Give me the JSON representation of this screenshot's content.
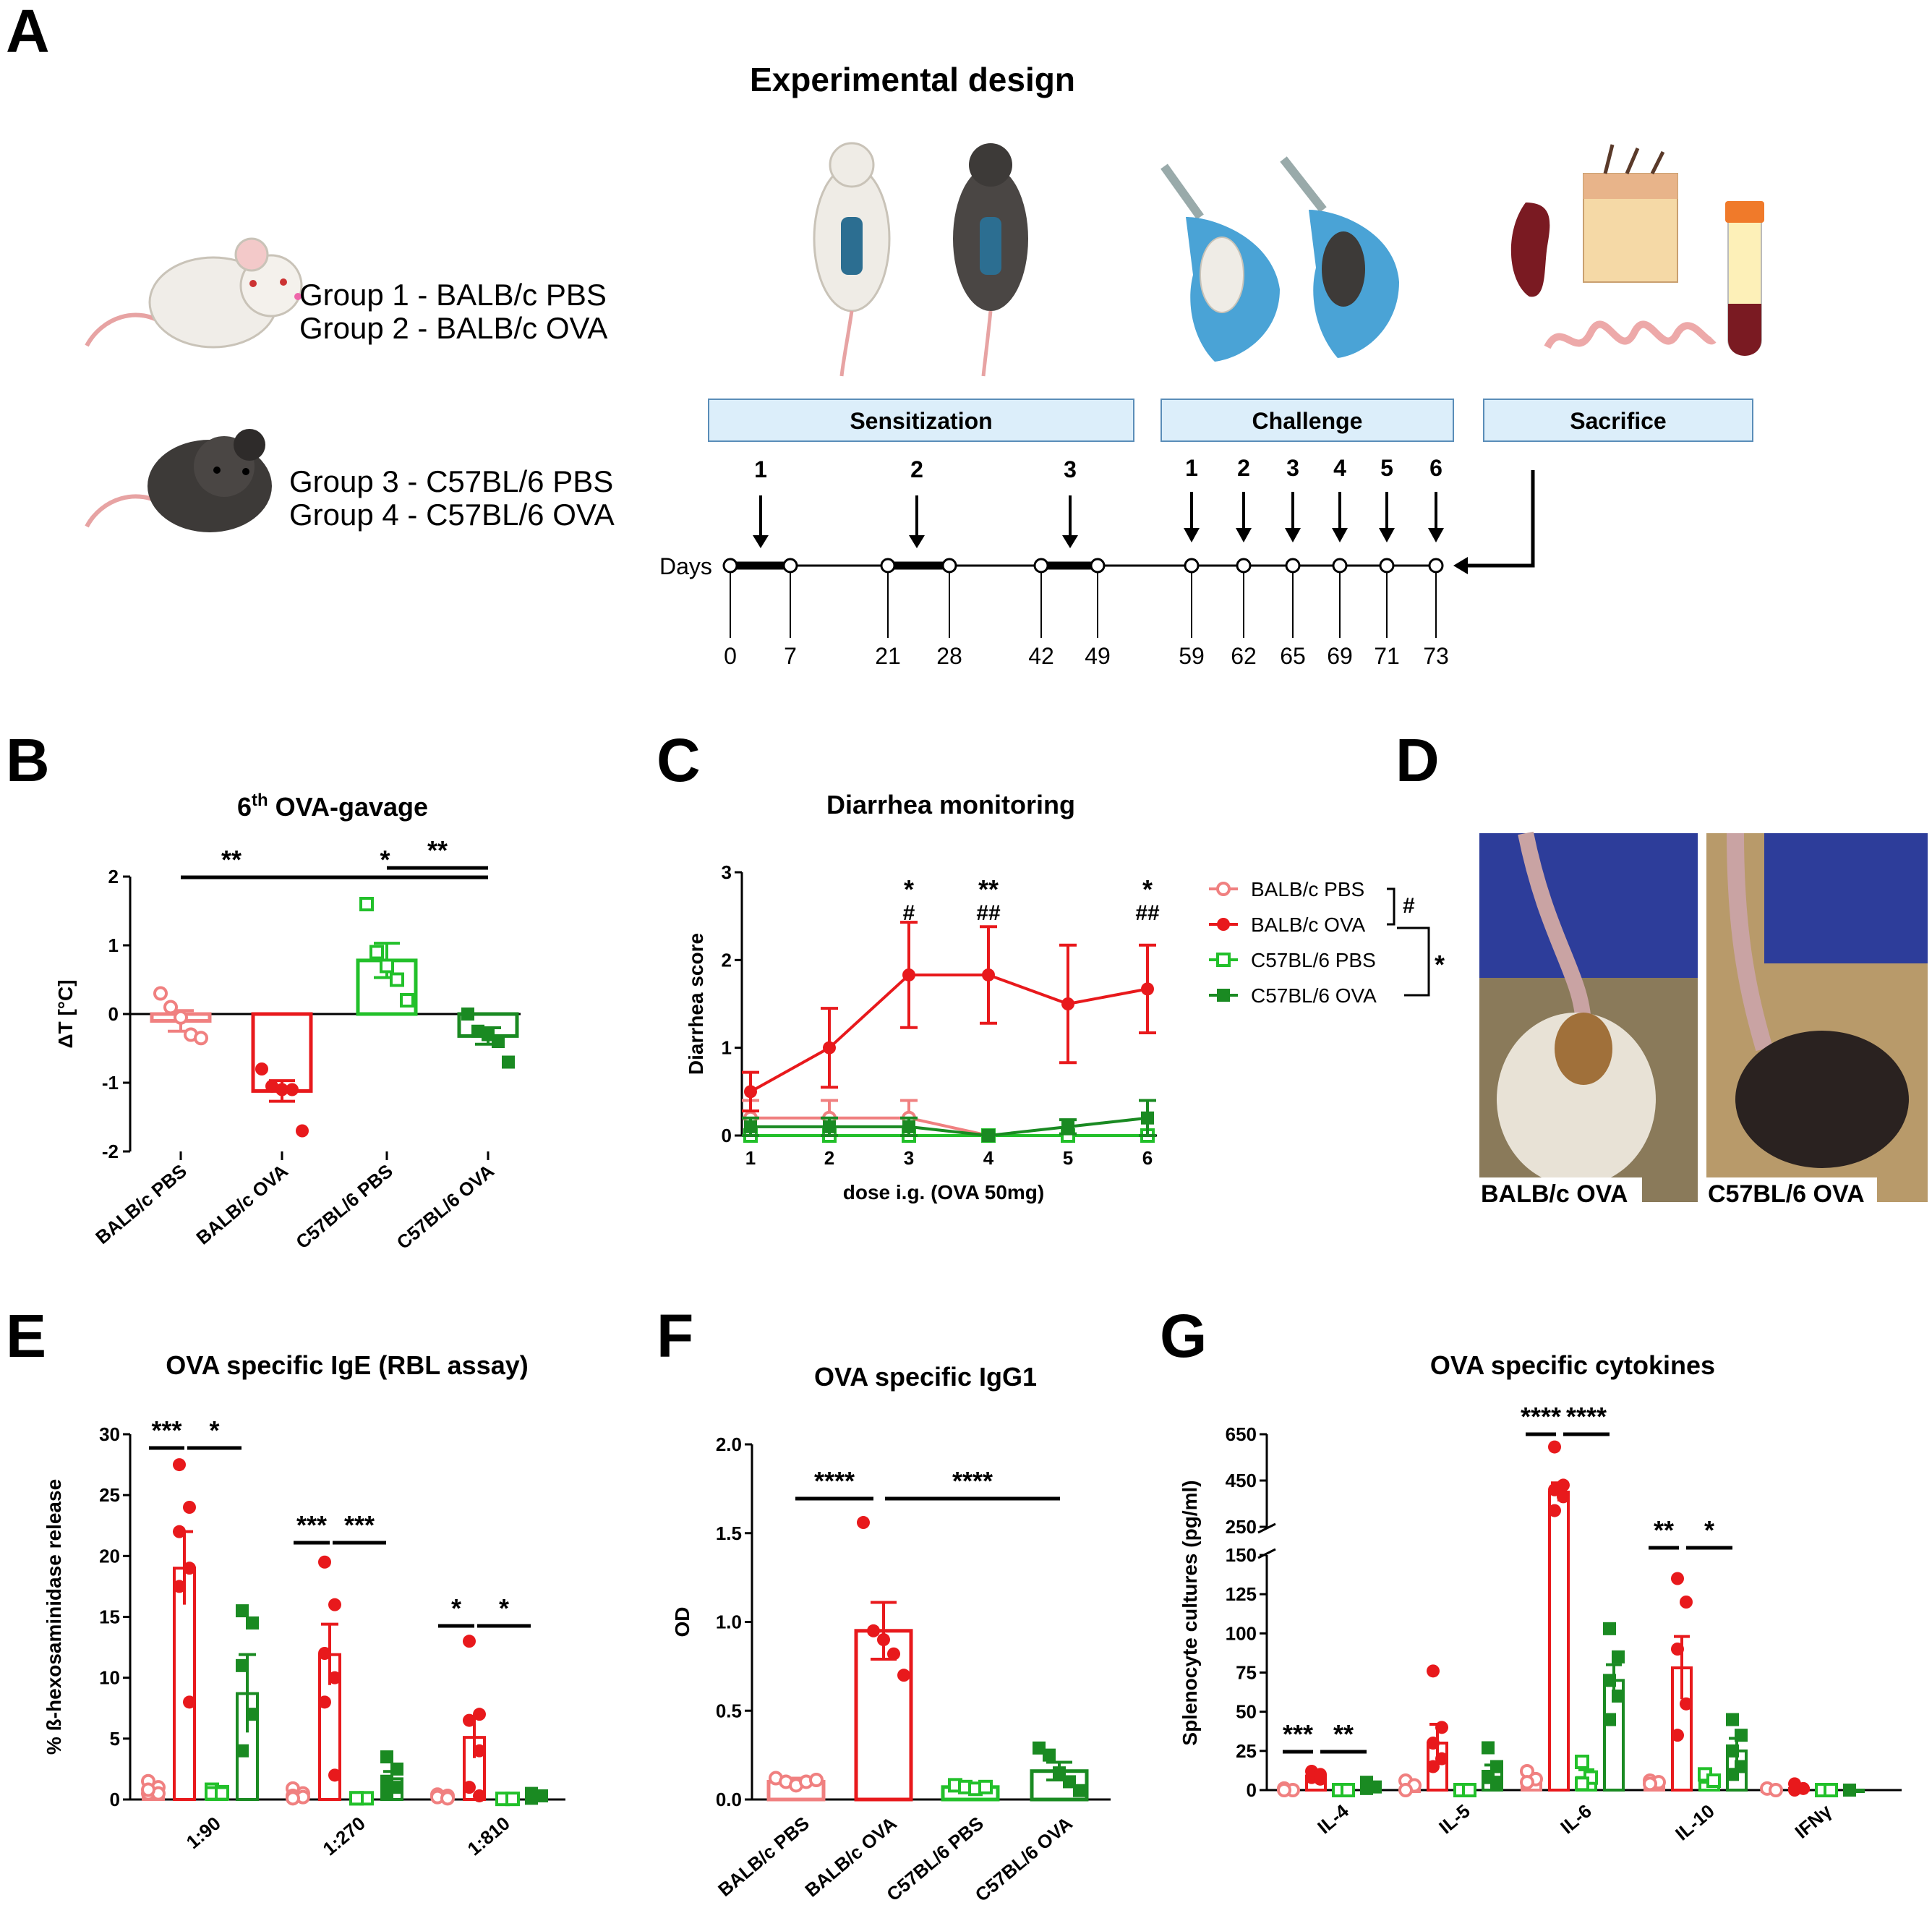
{
  "panels": {
    "A": "A",
    "B": "B",
    "C": "C",
    "D": "D",
    "E": "E",
    "F": "F",
    "G": "G"
  },
  "colors": {
    "balbPBS": "#f08080",
    "balbOVA": "#e8191c",
    "c57PBS": "#22c02a",
    "c57OVA": "#1a8a22",
    "phaseBox": "#dceefa",
    "phaseBorder": "#5a8db8"
  },
  "panelA": {
    "title": "Experimental design",
    "groups": [
      "Group 1 - BALB/c PBS",
      "Group 2 - BALB/c OVA",
      "Group 3 - C57BL/6 PBS",
      "Group 4 - C57BL/6 OVA"
    ],
    "phases": [
      "Sensitization",
      "Challenge",
      "Sacrifice"
    ],
    "days_label": "Days",
    "sens_numbers": [
      "1",
      "2",
      "3"
    ],
    "chal_numbers": [
      "1",
      "2",
      "3",
      "4",
      "5",
      "6"
    ],
    "days": [
      "0",
      "7",
      "21",
      "28",
      "42",
      "49",
      "59",
      "62",
      "65",
      "69",
      "71",
      "73"
    ]
  },
  "panelD": {
    "labels": [
      "BALB/c OVA",
      "C57BL/6 OVA"
    ]
  },
  "chart_data": [
    {
      "id": "B",
      "type": "bar",
      "title_pre": "6",
      "title_sup": "th",
      "title_post": " OVA-gavage",
      "ylabel": "ΔT [°C]",
      "ylim": [
        -2,
        2
      ],
      "yticks": [
        -2,
        -1,
        0,
        1,
        2
      ],
      "categories": [
        "BALB/c PBS",
        "BALB/c OVA",
        "C57BL/6 PBS",
        "C57BL/6 OVA"
      ],
      "means": [
        -0.1,
        -1.12,
        0.78,
        -0.32
      ],
      "sems": [
        0.15,
        0.15,
        0.25,
        0.12
      ],
      "points": [
        [
          0.3,
          0.1,
          -0.05,
          -0.3,
          -0.35
        ],
        [
          -0.8,
          -1.05,
          -1.1,
          -1.1,
          -1.7
        ],
        [
          1.6,
          0.9,
          0.7,
          0.5,
          0.2
        ],
        [
          0.0,
          -0.25,
          -0.3,
          -0.4,
          -0.7
        ]
      ],
      "sig": [
        {
          "from": 0,
          "to": 1,
          "label": "**"
        },
        {
          "from": 1,
          "to": 3,
          "label": "*"
        },
        {
          "from": 2,
          "to": 3,
          "label": "**"
        }
      ]
    },
    {
      "id": "C",
      "type": "line",
      "title": "Diarrhea monitoring",
      "xlabel": "dose i.g. (OVA 50mg)",
      "ylabel": "Diarrhea score",
      "x": [
        1,
        2,
        3,
        4,
        5,
        6
      ],
      "ylim": [
        0,
        3
      ],
      "yticks": [
        0,
        1,
        2,
        3
      ],
      "series": [
        {
          "name": "BALB/c PBS",
          "values": [
            0.2,
            0.2,
            0.2,
            0,
            0,
            0
          ],
          "err": [
            0.2,
            0.2,
            0.2,
            0,
            0,
            0
          ]
        },
        {
          "name": "BALB/c OVA",
          "values": [
            0.5,
            1.0,
            1.83,
            1.83,
            1.5,
            1.67
          ],
          "err": [
            0.22,
            0.45,
            0.6,
            0.55,
            0.67,
            0.5
          ]
        },
        {
          "name": "C57BL/6 PBS",
          "values": [
            0,
            0,
            0,
            0,
            0,
            0
          ],
          "err": [
            0,
            0,
            0,
            0,
            0,
            0
          ]
        },
        {
          "name": "C57BL/6 OVA",
          "values": [
            0.1,
            0.1,
            0.1,
            0,
            0.1,
            0.2
          ],
          "err": [
            0.1,
            0.1,
            0.1,
            0,
            0.08,
            0.2
          ]
        }
      ],
      "annotations": [
        {
          "x": 3,
          "star": "*",
          "hash": "#"
        },
        {
          "x": 4,
          "star": "**",
          "hash": "##"
        },
        {
          "x": 6,
          "star": "*",
          "hash": "##"
        }
      ],
      "legend_brackets": [
        "#",
        "*"
      ]
    },
    {
      "id": "E",
      "type": "bar",
      "title": "OVA specific IgE (RBL assay)",
      "ylabel": "% ß-hexosaminidase release",
      "ylim": [
        0,
        30
      ],
      "yticks": [
        0,
        5,
        10,
        15,
        20,
        25,
        30
      ],
      "categories": [
        "1:90",
        "1:270",
        "1:810"
      ],
      "means": [
        [
          0.8,
          19,
          0.6,
          8.7
        ],
        [
          0.4,
          11.9,
          0.1,
          1.7
        ],
        [
          0.2,
          5.1,
          0.05,
          0.2
        ]
      ],
      "sems": [
        [
          0.3,
          3,
          0.2,
          3.2
        ],
        [
          0.2,
          2.5,
          0.1,
          0.6
        ],
        [
          0.1,
          1.7,
          0.05,
          0.2
        ]
      ],
      "points": [
        [
          [
            1.5,
            1.0,
            0.5,
            0.5,
            0.8
          ],
          [
            27.5,
            24,
            22,
            19,
            17.5,
            8
          ],
          [
            0.8,
            0.6,
            0.5,
            0.5
          ],
          [
            15.5,
            14.5,
            11,
            7,
            4
          ]
        ],
        [
          [
            0.9,
            0.5,
            0.3,
            0.2,
            0.1
          ],
          [
            19.5,
            16,
            12,
            10,
            8,
            2
          ],
          [
            0.1,
            0.1,
            0.1
          ],
          [
            3.5,
            2.5,
            1.5,
            1,
            0.5
          ]
        ],
        [
          [
            0.4,
            0.3,
            0.2,
            0.1
          ],
          [
            13,
            7,
            6.5,
            4,
            1,
            0.3
          ],
          [
            0.05,
            0.05
          ],
          [
            0.5,
            0.3,
            0.1
          ]
        ]
      ],
      "sig": [
        [
          "***",
          "*"
        ],
        [
          "***",
          "***"
        ],
        [
          "*",
          "*"
        ]
      ]
    },
    {
      "id": "F",
      "type": "bar",
      "title": "OVA specific IgG1",
      "ylabel": "OD",
      "ylim": [
        0,
        2
      ],
      "yticks": [
        "0.0",
        "0.5",
        "1.0",
        "1.5",
        "2.0"
      ],
      "categories": [
        "BALB/c PBS",
        "BALB/c OVA",
        "C57BL/6 PBS",
        "C57BL/6 OVA"
      ],
      "means": [
        0.1,
        0.95,
        0.07,
        0.16
      ],
      "sems": [
        0.02,
        0.16,
        0.01,
        0.05
      ],
      "points": [
        [
          0.12,
          0.1,
          0.08,
          0.1,
          0.11
        ],
        [
          1.56,
          0.95,
          0.9,
          0.82,
          0.7
        ],
        [
          0.08,
          0.07,
          0.06,
          0.07
        ],
        [
          0.29,
          0.25,
          0.15,
          0.1,
          0.05
        ]
      ],
      "sig": [
        {
          "from": 0,
          "to": 1,
          "label": "****"
        },
        {
          "from": 1,
          "to": 3,
          "label": "****"
        }
      ]
    },
    {
      "id": "G",
      "type": "bar",
      "title": "OVA specific cytokines",
      "ylabel": "Splenocyte cultures (pg/ml)",
      "yticks_low": [
        0,
        25,
        50,
        75,
        100,
        125,
        150
      ],
      "yticks_high": [
        250,
        450,
        650
      ],
      "categories": [
        "IL-4",
        "IL-5",
        "IL-6",
        "IL-10",
        "IFNγ"
      ],
      "means": [
        [
          0,
          9,
          0,
          2
        ],
        [
          0,
          30,
          0,
          12
        ],
        [
          6,
          400,
          8,
          70
        ],
        [
          5,
          78,
          5,
          25
        ],
        [
          0,
          1,
          0,
          0
        ]
      ],
      "sems": [
        [
          0,
          2,
          0,
          1
        ],
        [
          0,
          12,
          0,
          4
        ],
        [
          3,
          40,
          5,
          10
        ],
        [
          1,
          20,
          2,
          8
        ],
        [
          0,
          1,
          0,
          0
        ]
      ],
      "points": [
        [
          [
            1,
            0,
            0
          ],
          [
            12,
            10,
            8,
            7
          ],
          [
            0,
            0
          ],
          [
            5,
            2,
            1
          ]
        ],
        [
          [
            6,
            3,
            0
          ],
          [
            76,
            40,
            30,
            20,
            15
          ],
          [
            0,
            0
          ],
          [
            27,
            15,
            8,
            5
          ]
        ],
        [
          [
            12,
            7,
            5
          ],
          [
            595,
            430,
            410,
            380,
            320
          ],
          [
            18,
            8,
            4
          ],
          [
            103,
            85,
            70,
            60,
            45
          ]
        ],
        [
          [
            6,
            5,
            4
          ],
          [
            135,
            120,
            90,
            55,
            35
          ],
          [
            10,
            6
          ],
          [
            45,
            35,
            25,
            15,
            10
          ]
        ],
        [
          [
            1,
            0
          ],
          [
            4,
            1,
            0
          ],
          [
            0,
            0
          ],
          [
            0
          ]
        ]
      ],
      "sig": [
        [
          "***",
          "**"
        ],
        null,
        [
          "****",
          "****"
        ],
        [
          "**",
          "*"
        ],
        null
      ]
    }
  ]
}
